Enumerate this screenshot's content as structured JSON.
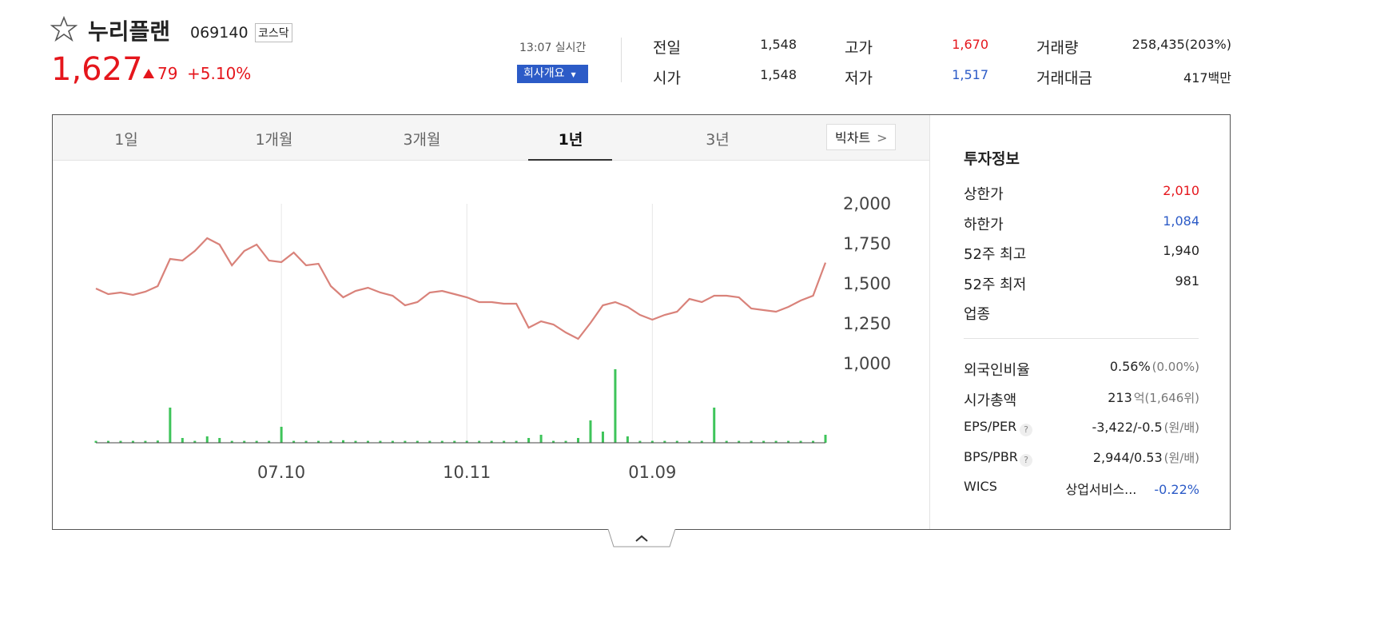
{
  "header": {
    "name": "누리플랜",
    "code": "069140",
    "market": "코스닥",
    "price": "1,627",
    "change": "79",
    "change_rate": "+5.10%",
    "time": "13:07 실시간",
    "company_button": "회사개요"
  },
  "summary": {
    "rows": [
      [
        {
          "label": "전일",
          "value": "1,548"
        },
        {
          "label": "고가",
          "value": "1,670"
        },
        {
          "label": "거래량",
          "value": "258,435(203%)"
        }
      ],
      [
        {
          "label": "시가",
          "value": "1,548"
        },
        {
          "label": "저가",
          "value": "1,517"
        },
        {
          "label": "거래대금",
          "value": "417백만"
        }
      ]
    ]
  },
  "tabs": {
    "items": [
      "1일",
      "1개월",
      "3개월",
      "1년",
      "3년"
    ],
    "active": 3,
    "big_chart": "빅차트"
  },
  "chart_data": {
    "type": "line",
    "color": "#d9827a",
    "categories": [
      null,
      null,
      null,
      null,
      null,
      null,
      null,
      null,
      null,
      null,
      null,
      null,
      null,
      null,
      null,
      "07.10",
      null,
      null,
      null,
      null,
      null,
      null,
      null,
      null,
      null,
      null,
      null,
      null,
      null,
      null,
      "10.11",
      null,
      null,
      null,
      null,
      null,
      null,
      null,
      null,
      null,
      null,
      null,
      null,
      null,
      null,
      "01.09",
      null,
      null,
      null,
      null,
      null,
      null,
      null,
      null,
      null,
      null,
      null,
      null,
      null,
      null
    ],
    "values": [
      1465,
      1430,
      1440,
      1425,
      1445,
      1480,
      1650,
      1640,
      1700,
      1780,
      1740,
      1610,
      1700,
      1740,
      1640,
      1630,
      1690,
      1610,
      1620,
      1480,
      1410,
      1450,
      1470,
      1440,
      1420,
      1360,
      1380,
      1440,
      1450,
      1430,
      1410,
      1380,
      1380,
      1370,
      1370,
      1220,
      1260,
      1240,
      1190,
      1150,
      1250,
      1360,
      1380,
      1350,
      1300,
      1270,
      1300,
      1320,
      1400,
      1380,
      1420,
      1420,
      1410,
      1340,
      1330,
      1320,
      1350,
      1390,
      1420,
      1627
    ],
    "ylim": [
      500,
      2100
    ],
    "yticks": [
      {
        "value": 1000,
        "label": "1,000"
      },
      {
        "value": 1250,
        "label": "1,250"
      },
      {
        "value": 1500,
        "label": "1,500"
      },
      {
        "value": 1750,
        "label": "1,750"
      },
      {
        "value": 2000,
        "label": "2,000"
      }
    ],
    "volume": {
      "color": "#3ec45a",
      "ylim": [
        0,
        2500000
      ],
      "values": [
        60000,
        60000,
        60000,
        60000,
        60000,
        70000,
        1100000,
        150000,
        60000,
        200000,
        150000,
        60000,
        60000,
        60000,
        60000,
        500000,
        60000,
        60000,
        60000,
        60000,
        80000,
        60000,
        60000,
        60000,
        60000,
        60000,
        60000,
        60000,
        60000,
        60000,
        60000,
        60000,
        60000,
        60000,
        60000,
        150000,
        250000,
        60000,
        60000,
        150000,
        700000,
        350000,
        2300000,
        200000,
        60000,
        60000,
        60000,
        60000,
        60000,
        60000,
        1100000,
        60000,
        60000,
        60000,
        60000,
        60000,
        60000,
        60000,
        60000,
        250000
      ]
    }
  },
  "invest": {
    "title": "투자정보",
    "rows": [
      {
        "label": "상한가",
        "value": "2,010"
      },
      {
        "label": "하한가",
        "value": "1,084"
      },
      {
        "label": "52주 최고",
        "value": "1,940"
      },
      {
        "label": "52주 최저",
        "value": "981"
      },
      {
        "label": "업종"
      }
    ],
    "rows2": [
      {
        "label": "외국인비율",
        "value": "0.56%",
        "note": "(0.00%)"
      },
      {
        "label": "시가총액",
        "value": "213",
        "note": "억(1,646위)"
      },
      {
        "label": "EPS/PER",
        "value": "-3,422/-0.5",
        "note": "(원/배)"
      },
      {
        "label": "BPS/PBR",
        "value": "2,944/0.53",
        "note": "(원/배)"
      },
      {
        "label": "WICS",
        "value": "상업서비스...",
        "note": "-0.22%"
      }
    ]
  }
}
